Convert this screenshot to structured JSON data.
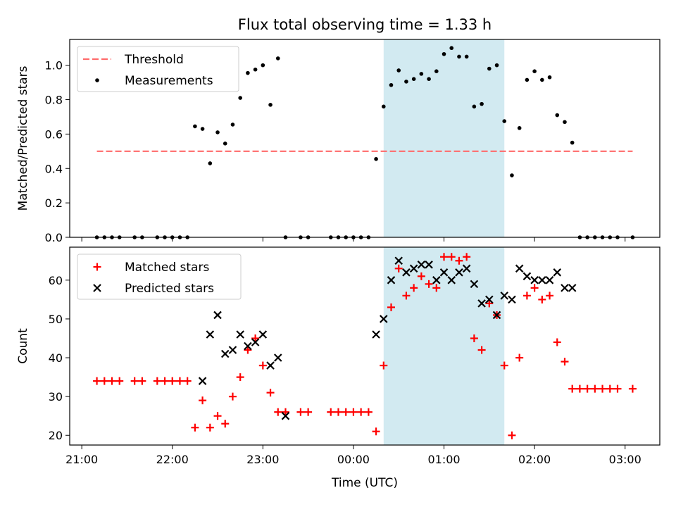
{
  "chart_data": [
    {
      "type": "scatter",
      "title": "Flux total observing time = 1.33 h",
      "xlabel": "",
      "ylabel": "Matched/Predicted stars",
      "ylim": [
        0,
        1.15
      ],
      "xlim": [
        "20:52",
        "03:23"
      ],
      "yticks": [
        "0.0",
        "0.2",
        "0.4",
        "0.6",
        "0.8",
        "1.0"
      ],
      "highlight_span": [
        "00:20",
        "01:40"
      ],
      "threshold": {
        "name": "Threshold",
        "value": 0.5,
        "x_range": [
          "21:10",
          "03:05"
        ],
        "color": "#ff6b6b",
        "style": "dashed"
      },
      "legend": [
        "Threshold",
        "Measurements"
      ],
      "legend_position": "upper left",
      "series": [
        {
          "name": "Measurements",
          "color": "#000000",
          "marker": "dot",
          "x": [
            "21:10",
            "21:15",
            "21:20",
            "21:25",
            "21:35",
            "21:40",
            "21:50",
            "21:55",
            "22:00",
            "22:05",
            "22:10",
            "22:15",
            "22:20",
            "22:25",
            "22:30",
            "22:35",
            "22:40",
            "22:45",
            "22:50",
            "22:55",
            "23:00",
            "23:05",
            "23:10",
            "23:15",
            "23:25",
            "23:30",
            "23:45",
            "23:50",
            "23:55",
            "00:00",
            "00:05",
            "00:10",
            "00:15",
            "00:20",
            "00:25",
            "00:30",
            "00:35",
            "00:40",
            "00:45",
            "00:50",
            "00:55",
            "01:00",
            "01:05",
            "01:10",
            "01:15",
            "01:20",
            "01:25",
            "01:30",
            "01:35",
            "01:40",
            "01:45",
            "01:50",
            "01:55",
            "02:00",
            "02:05",
            "02:10",
            "02:15",
            "02:20",
            "02:25",
            "02:30",
            "02:35",
            "02:40",
            "02:45",
            "02:50",
            "02:55",
            "03:05"
          ],
          "y": [
            0,
            0,
            0,
            0,
            0,
            0,
            0,
            0,
            0,
            0,
            0,
            0.645,
            0.63,
            0.43,
            0.61,
            0.545,
            0.655,
            0.81,
            0.955,
            0.975,
            1.0,
            0.77,
            1.04,
            0,
            0,
            0,
            0,
            0,
            0,
            0,
            0,
            0,
            0.455,
            0.76,
            0.885,
            0.97,
            0.905,
            0.92,
            0.95,
            0.92,
            0.965,
            1.065,
            1.1,
            1.05,
            1.05,
            0.76,
            0.775,
            0.98,
            1.0,
            0.675,
            0.36,
            0.635,
            0.915,
            0.965,
            0.915,
            0.93,
            0.71,
            0.67,
            0.55,
            0,
            0,
            0,
            0,
            0,
            0,
            0
          ]
        }
      ]
    },
    {
      "type": "scatter",
      "title": "",
      "xlabel": "Time (UTC)",
      "ylabel": "Count",
      "ylim": [
        17.5,
        68.5
      ],
      "xlim": [
        "20:52",
        "03:23"
      ],
      "yticks": [
        "20",
        "30",
        "40",
        "50",
        "60"
      ],
      "xticks": [
        "21:00",
        "22:00",
        "23:00",
        "00:00",
        "01:00",
        "02:00",
        "03:00"
      ],
      "highlight_span": [
        "00:20",
        "01:40"
      ],
      "legend": [
        "Matched stars",
        "Predicted stars"
      ],
      "legend_position": "upper left",
      "series": [
        {
          "name": "Matched stars",
          "color": "#ff0000",
          "marker": "plus",
          "x": [
            "21:10",
            "21:15",
            "21:20",
            "21:25",
            "21:35",
            "21:40",
            "21:50",
            "21:55",
            "22:00",
            "22:05",
            "22:10",
            "22:15",
            "22:20",
            "22:25",
            "22:30",
            "22:35",
            "22:40",
            "22:45",
            "22:50",
            "22:55",
            "23:00",
            "23:05",
            "23:10",
            "23:15",
            "23:25",
            "23:30",
            "23:45",
            "23:50",
            "23:55",
            "00:00",
            "00:05",
            "00:10",
            "00:15",
            "00:20",
            "00:25",
            "00:30",
            "00:35",
            "00:40",
            "00:45",
            "00:50",
            "00:55",
            "01:00",
            "01:05",
            "01:10",
            "01:15",
            "01:20",
            "01:25",
            "01:30",
            "01:35",
            "01:40",
            "01:45",
            "01:50",
            "01:55",
            "02:00",
            "02:05",
            "02:10",
            "02:15",
            "02:20",
            "02:25",
            "02:30",
            "02:35",
            "02:40",
            "02:45",
            "02:50",
            "02:55",
            "03:05"
          ],
          "y": [
            34,
            34,
            34,
            34,
            34,
            34,
            34,
            34,
            34,
            34,
            34,
            22,
            29,
            22,
            25,
            23,
            30,
            35,
            42,
            45,
            38,
            31,
            26,
            26,
            26,
            26,
            26,
            26,
            26,
            26,
            26,
            26,
            21,
            38,
            53,
            63,
            56,
            58,
            61,
            59,
            58,
            66,
            66,
            65,
            66,
            45,
            42,
            54,
            51,
            38,
            20,
            40,
            56,
            58,
            55,
            56,
            44,
            39,
            32,
            32,
            32,
            32,
            32,
            32,
            32,
            32
          ]
        },
        {
          "name": "Predicted stars",
          "color": "#000000",
          "marker": "x",
          "x": [
            "22:20",
            "22:25",
            "22:30",
            "22:35",
            "22:40",
            "22:45",
            "22:50",
            "22:55",
            "23:00",
            "23:05",
            "23:10",
            "23:15",
            "00:15",
            "00:20",
            "00:25",
            "00:30",
            "00:35",
            "00:40",
            "00:45",
            "00:50",
            "00:55",
            "01:00",
            "01:05",
            "01:10",
            "01:15",
            "01:20",
            "01:25",
            "01:30",
            "01:35",
            "01:40",
            "01:45",
            "01:50",
            "01:55",
            "02:00",
            "02:05",
            "02:10",
            "02:15",
            "02:20",
            "02:25"
          ],
          "y": [
            34,
            46,
            51,
            41,
            42,
            46,
            43,
            44,
            46,
            38,
            40,
            25,
            46,
            50,
            60,
            65,
            62,
            63,
            64,
            64,
            60,
            62,
            60,
            62,
            63,
            59,
            54,
            55,
            51,
            56,
            55,
            63,
            61,
            60,
            60,
            60,
            62,
            58,
            58
          ]
        }
      ]
    }
  ]
}
